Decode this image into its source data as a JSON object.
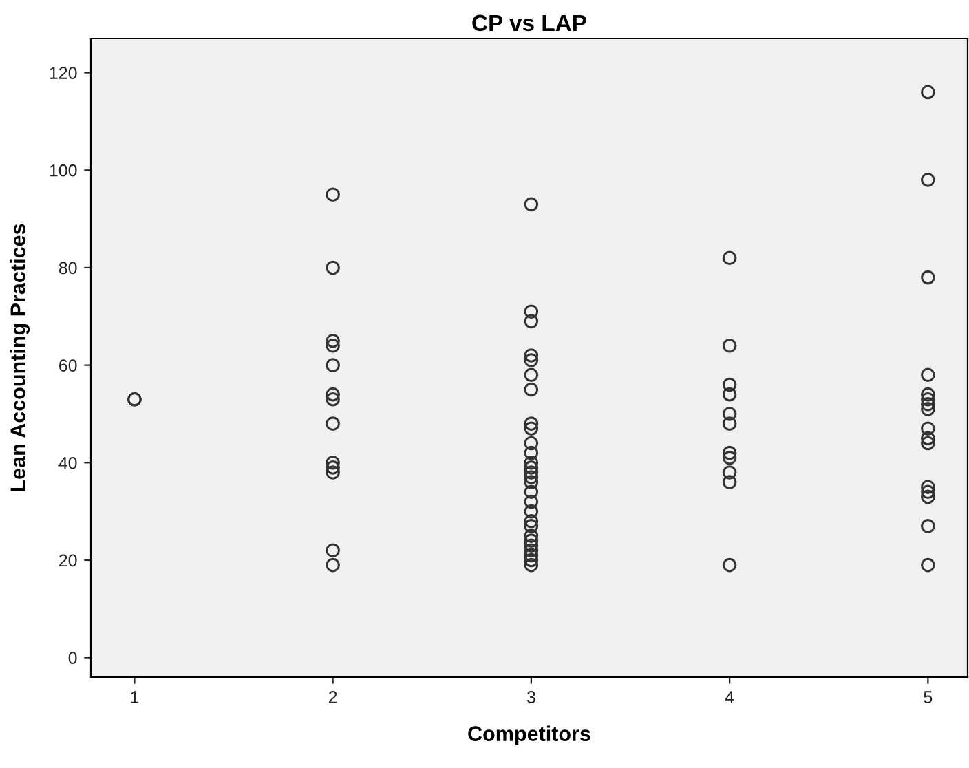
{
  "chart_data": {
    "type": "scatter",
    "title": "CP vs LAP",
    "xlabel": "Competitors",
    "ylabel": "Lean Accounting Practices",
    "marker": "circle",
    "grid": false,
    "xlim": [
      0.78,
      5.2
    ],
    "xticks": [
      1,
      2,
      3,
      4,
      5
    ],
    "ylim": [
      -4,
      127
    ],
    "yticks": [
      0,
      20,
      40,
      60,
      80,
      100,
      120
    ],
    "series": [
      {
        "color": "#333333",
        "x": [
          1,
          1,
          2,
          2,
          2,
          2,
          2,
          2,
          2,
          2,
          2,
          2,
          2,
          2,
          2,
          3,
          3,
          3,
          3,
          3,
          3,
          3,
          3,
          3,
          3,
          3,
          3,
          3,
          3,
          3,
          3,
          3,
          3,
          3,
          3,
          3,
          3,
          3,
          3,
          3,
          3,
          3,
          3,
          4,
          4,
          4,
          4,
          4,
          4,
          4,
          4,
          4,
          4,
          4,
          5,
          5,
          5,
          5,
          5,
          5,
          5,
          5,
          5,
          5,
          5,
          5,
          5,
          5,
          5,
          5
        ],
        "values": [
          53,
          53,
          95,
          80,
          65,
          64,
          60,
          54,
          53,
          48,
          40,
          39,
          38,
          22,
          19,
          93,
          71,
          69,
          62,
          61,
          58,
          55,
          48,
          47,
          44,
          42,
          40,
          39,
          38,
          37,
          36,
          34,
          32,
          30,
          28,
          27,
          25,
          24,
          23,
          22,
          21,
          20,
          19,
          82,
          64,
          56,
          54,
          50,
          48,
          42,
          41,
          38,
          36,
          19,
          116,
          98,
          78,
          58,
          54,
          53,
          52,
          51,
          47,
          45,
          44,
          35,
          34,
          33,
          27,
          19
        ]
      }
    ]
  }
}
